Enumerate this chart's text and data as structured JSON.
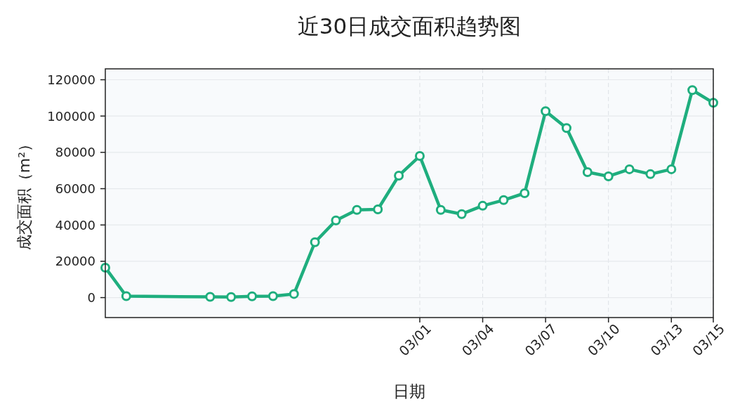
{
  "chart_data": {
    "type": "line",
    "title": "近30日成交面积趋势图",
    "xlabel": "日期",
    "ylabel": "成交面积（m²）",
    "x": [
      "--02-14",
      "--02-15",
      "--02-19",
      "--02-20",
      "--02-21",
      "--02-22",
      "--02-23",
      "--02-24",
      "--02-25",
      "--02-26",
      "--02-27",
      "--02-28",
      "--03-01",
      "--03-02",
      "--03-03",
      "--03-04",
      "--03-05",
      "--03-06",
      "--03-07",
      "--03-08",
      "--03-09",
      "--03-10",
      "--03-11",
      "--03-12",
      "--03-13",
      "--03-14",
      "--03-15"
    ],
    "series": [
      {
        "color": "#1fae7e",
        "values": [
          16500,
          800,
          400,
          300,
          700,
          800,
          2000,
          30500,
          42500,
          48300,
          48600,
          67200,
          78000,
          48300,
          46000,
          50600,
          53700,
          57500,
          102700,
          93400,
          69100,
          66800,
          70700,
          68000,
          70700,
          114300,
          107300
        ]
      }
    ],
    "xlim": [
      "--02-14",
      "--03-15"
    ],
    "xticks": [
      {
        "value": "--03-01",
        "label": "03/01"
      },
      {
        "value": "--03-04",
        "label": "03/04"
      },
      {
        "value": "--03-07",
        "label": "03/07"
      },
      {
        "value": "--03-10",
        "label": "03/10"
      },
      {
        "value": "--03-13",
        "label": "03/13"
      },
      {
        "value": "--03-15",
        "label": "03/15"
      }
    ],
    "ylim": [
      -11000,
      126000
    ],
    "yticks": [
      0,
      20000,
      40000,
      60000,
      80000,
      100000,
      120000
    ],
    "grid": true,
    "marker": "circle",
    "line_style": "solid"
  }
}
